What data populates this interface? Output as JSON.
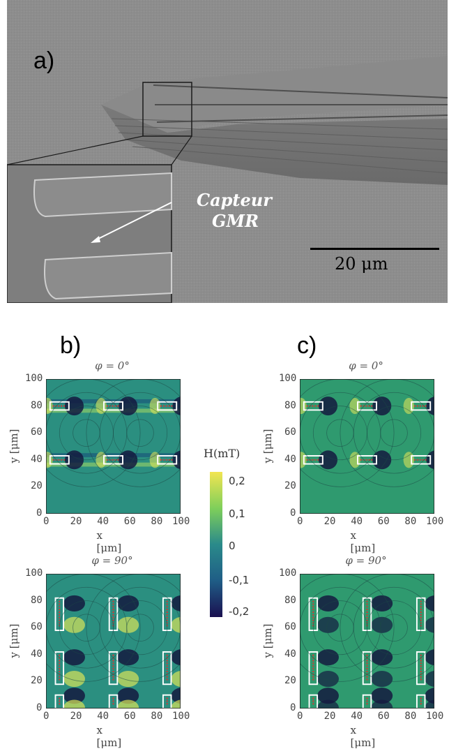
{
  "panel_a": {
    "label": "a)",
    "annotation_line1": "Capteur",
    "annotation_line2": "GMR",
    "scalebar_label": "20 μm"
  },
  "panel_b": {
    "label": "b)",
    "plots": [
      {
        "title": "φ = 0°",
        "xlabel": "x [μm]",
        "ylabel": "y [μm]"
      },
      {
        "title": "φ = 90°",
        "xlabel": "x [μm]",
        "ylabel": "y [μm]"
      }
    ]
  },
  "panel_c": {
    "label": "c)",
    "plots": [
      {
        "title": "φ = 0°",
        "xlabel": "x [μm]",
        "ylabel": "y [μm]"
      },
      {
        "title": "φ = 90°",
        "xlabel": "x [μm]",
        "ylabel": "y [μm]"
      }
    ]
  },
  "ticks": {
    "x": [
      "0",
      "20",
      "40",
      "60",
      "80",
      "100"
    ],
    "y": [
      "100",
      "80",
      "60",
      "40",
      "20",
      "0"
    ]
  },
  "colorbar": {
    "label": "H(mT)",
    "ticks": [
      "0,2",
      "0,1",
      "0",
      "-0,1",
      "-0,2"
    ],
    "colors": [
      "#f2e552",
      "#7fcf5a",
      "#2a8a8a",
      "#1f5d86",
      "#1a1050"
    ]
  }
}
